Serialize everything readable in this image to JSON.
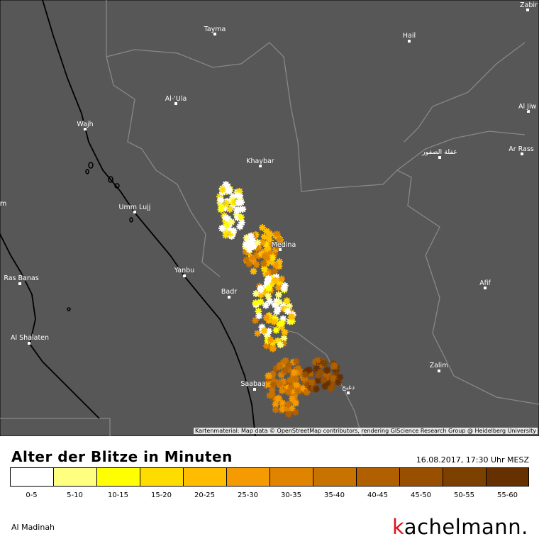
{
  "map": {
    "places": [
      "Tayma",
      "Hail",
      "Zabir",
      "Al-'Ula",
      "Al Jiw",
      "Wajh",
      "Khaybar",
      "Ar Rass",
      "عقلة الصقور",
      "Umm Lujj",
      "m",
      "Medina",
      "Yanbu",
      "Ras Banas",
      "Badr",
      "Afif",
      "Al Shalaten",
      "Zalim",
      "Saabaa",
      "دغبج"
    ],
    "attribution": "Kartenmaterial: Map data © OpenStreetMap contributors, rendering GIScience Research Group @ Heidelberg University"
  },
  "legend": {
    "title": "Alter der Blitze in Minuten",
    "timestamp": "16.08.2017, 17:30 Uhr MESZ",
    "items": [
      {
        "label": "0-5",
        "color": "#ffffff"
      },
      {
        "label": "5-10",
        "color": "#ffff80"
      },
      {
        "label": "10-15",
        "color": "#ffff00"
      },
      {
        "label": "15-20",
        "color": "#ffdc00"
      },
      {
        "label": "20-25",
        "color": "#ffbc00"
      },
      {
        "label": "25-30",
        "color": "#f59a00"
      },
      {
        "label": "30-35",
        "color": "#e08400"
      },
      {
        "label": "35-40",
        "color": "#c87200"
      },
      {
        "label": "40-45",
        "color": "#b06000"
      },
      {
        "label": "45-50",
        "color": "#985000"
      },
      {
        "label": "50-55",
        "color": "#7c4000"
      },
      {
        "label": "55-60",
        "color": "#663000"
      }
    ]
  },
  "footer": {
    "region": "Al Madinah",
    "brand": "kachelmann."
  }
}
